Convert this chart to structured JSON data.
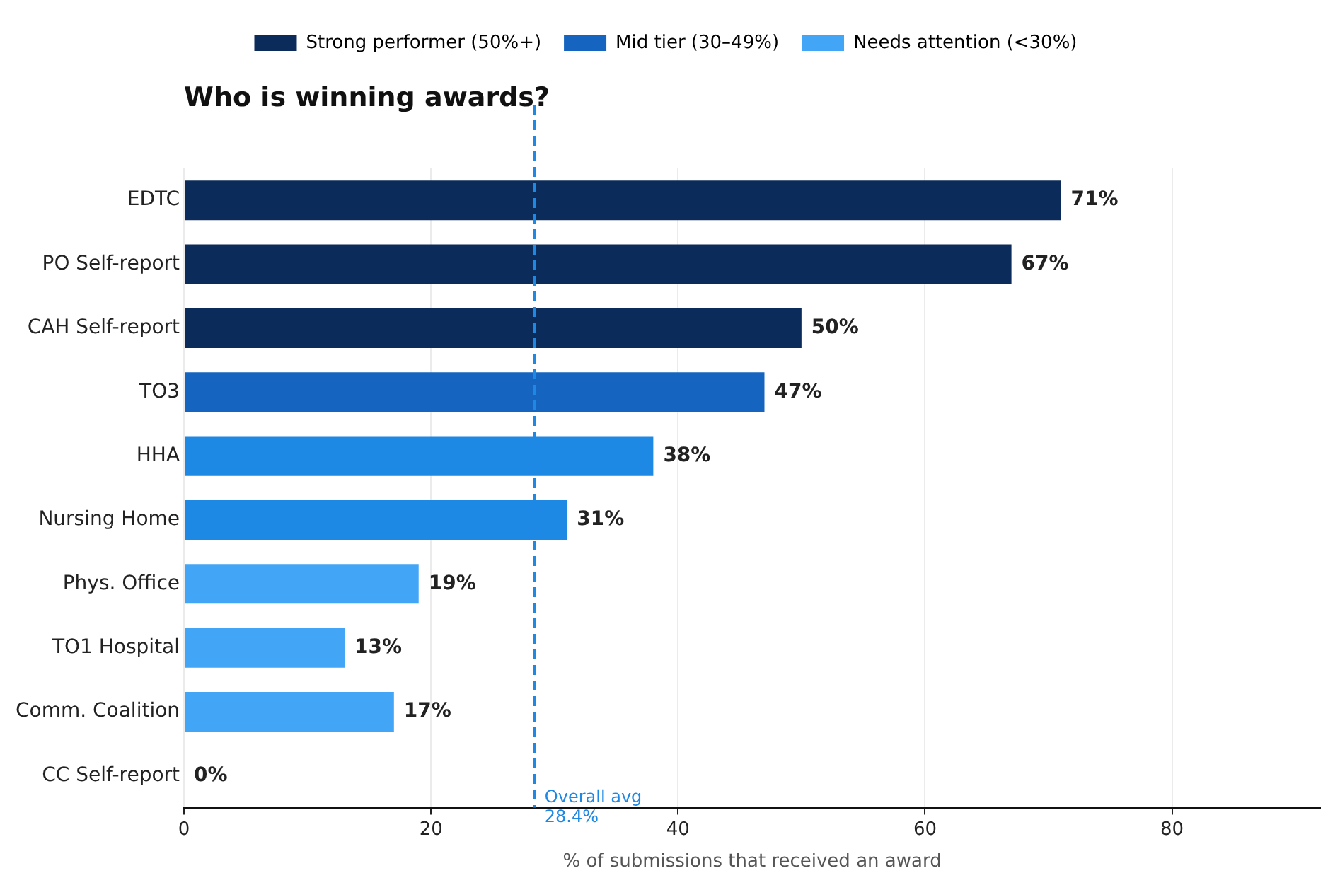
{
  "chart_data": {
    "type": "bar",
    "orientation": "horizontal",
    "stacked": true,
    "title": "Who is winning awards?",
    "xlabel": "% of submissions that received an award",
    "categories": [
      "EDTC",
      "PO Self-report",
      "CAH Self-report",
      "TO3",
      "HHA",
      "Nursing Home",
      "Phys. Office",
      "TO1 Hospital",
      "Comm. Coalition",
      "CC Self-report"
    ],
    "series": [
      {
        "name": "Strong performer (50%+)",
        "color": "#0b2c5a",
        "values": [
          71,
          67,
          50,
          null,
          null,
          null,
          null,
          null,
          null,
          null
        ],
        "value_labels": [
          "71%",
          "67%",
          "50%",
          null,
          null,
          null,
          null,
          null,
          null,
          null
        ]
      },
      {
        "name": "Mid tier (30–49%)",
        "color": "#1565c0",
        "colors": [
          "#1565c0",
          "#1565c0",
          "#1565c0",
          "#1565c0",
          "#1e88e5",
          "#1e88e5",
          "#1565c0",
          "#1565c0",
          "#1565c0",
          "#1565c0"
        ],
        "values": [
          null,
          null,
          null,
          47,
          38,
          31,
          null,
          null,
          null,
          null
        ],
        "value_labels": [
          null,
          null,
          null,
          "47%",
          "38%",
          "31%",
          null,
          null,
          null,
          null
        ]
      },
      {
        "name": "Needs attention (<30%)",
        "color": "#42a5f5",
        "values": [
          null,
          null,
          null,
          null,
          null,
          null,
          19,
          13,
          17,
          0
        ],
        "value_labels": [
          null,
          null,
          null,
          null,
          null,
          null,
          "19%",
          "13%",
          "17%",
          "0%"
        ]
      }
    ],
    "xlim": [
      0,
      92
    ],
    "xticks": [
      0,
      20,
      40,
      60,
      80
    ],
    "grid": "x",
    "legend": "top",
    "ref_lines": [
      {
        "axis": "x",
        "value": 28.4,
        "label": "Overall avg\n28.4%",
        "color": "#1e88e5",
        "line_style": "dashed"
      }
    ]
  }
}
